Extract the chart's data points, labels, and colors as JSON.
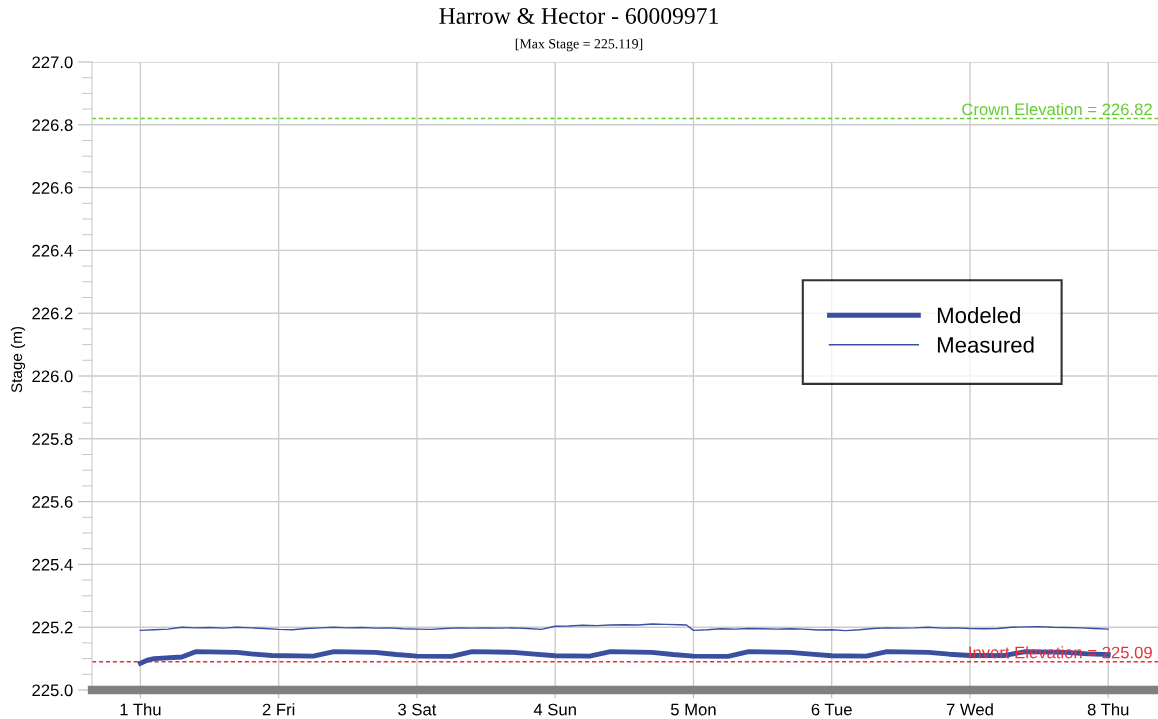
{
  "chart_data": {
    "type": "line",
    "title": "Harrow & Hector - 60009971",
    "subtitle": "[Max Stage = 225.119]",
    "ylabel": "Stage (m)",
    "xlim": [
      0.65,
      8.36
    ],
    "ylim": [
      225.0,
      227.0
    ],
    "xticks": [
      {
        "value": 1,
        "label": "1 Thu"
      },
      {
        "value": 2,
        "label": "2 Fri"
      },
      {
        "value": 3,
        "label": "3 Sat"
      },
      {
        "value": 4,
        "label": "4 Sun"
      },
      {
        "value": 5,
        "label": "5 Mon"
      },
      {
        "value": 6,
        "label": "6 Tue"
      },
      {
        "value": 7,
        "label": "7 Wed"
      },
      {
        "value": 8,
        "label": "8 Thu"
      }
    ],
    "yticks": [
      {
        "value": 225,
        "label": "225.0"
      },
      225.2,
      225.4,
      225.6,
      225.8,
      {
        "value": 226,
        "label": "226.0"
      },
      226.2,
      226.4,
      226.6,
      226.8,
      {
        "value": 227,
        "label": "227.0"
      }
    ],
    "grid": true,
    "legend": "right",
    "line_style": "solid",
    "marker": "none",
    "series": [
      {
        "name": "Modeled",
        "color": "#3a4fa0",
        "x": [
          1.0,
          1.05,
          1.1,
          1.3,
          1.4,
          1.7,
          1.8,
          1.95,
          2.25,
          2.4,
          2.7,
          2.85,
          3.0,
          3.25,
          3.4,
          3.7,
          3.85,
          4.0,
          4.25,
          4.4,
          4.7,
          4.85,
          5.0,
          5.25,
          5.4,
          5.7,
          5.85,
          6.0,
          6.25,
          6.4,
          6.7,
          6.85,
          7.0,
          7.25,
          7.4,
          7.7,
          7.85,
          8.0
        ],
        "values": [
          225.085,
          225.095,
          225.1,
          225.105,
          225.122,
          225.12,
          225.115,
          225.11,
          225.108,
          225.122,
          225.12,
          225.113,
          225.108,
          225.107,
          225.122,
          225.12,
          225.114,
          225.109,
          225.108,
          225.122,
          225.12,
          225.113,
          225.108,
          225.107,
          225.122,
          225.12,
          225.114,
          225.109,
          225.108,
          225.122,
          225.12,
          225.114,
          225.11,
          225.11,
          225.122,
          225.12,
          225.115,
          225.113
        ]
      },
      {
        "name": "Measured",
        "color": "#3a4fa0",
        "x": [
          1.0,
          1.1,
          1.2,
          1.3,
          1.4,
          1.5,
          1.6,
          1.7,
          1.8,
          1.9,
          2.0,
          2.1,
          2.2,
          2.3,
          2.4,
          2.5,
          2.6,
          2.7,
          2.8,
          2.9,
          3.0,
          3.1,
          3.2,
          3.3,
          3.4,
          3.5,
          3.6,
          3.7,
          3.8,
          3.9,
          4.0,
          4.1,
          4.2,
          4.3,
          4.4,
          4.5,
          4.6,
          4.7,
          4.8,
          4.9,
          4.95,
          5.0,
          5.1,
          5.2,
          5.3,
          5.4,
          5.5,
          5.6,
          5.7,
          5.8,
          5.9,
          6.0,
          6.1,
          6.2,
          6.3,
          6.4,
          6.5,
          6.6,
          6.7,
          6.8,
          6.9,
          7.0,
          7.1,
          7.2,
          7.3,
          7.4,
          7.5,
          7.6,
          7.7,
          7.8,
          7.9,
          8.0
        ],
        "values": [
          225.19,
          225.192,
          225.194,
          225.2,
          225.198,
          225.199,
          225.197,
          225.2,
          225.198,
          225.196,
          225.193,
          225.192,
          225.196,
          225.198,
          225.2,
          225.198,
          225.199,
          225.197,
          225.198,
          225.195,
          225.194,
          225.193,
          225.196,
          225.198,
          225.197,
          225.198,
          225.197,
          225.198,
          225.196,
          225.193,
          225.203,
          225.204,
          225.206,
          225.205,
          225.207,
          225.208,
          225.207,
          225.21,
          225.209,
          225.208,
          225.207,
          225.19,
          225.192,
          225.195,
          225.194,
          225.196,
          225.195,
          225.194,
          225.195,
          225.194,
          225.191,
          225.192,
          225.189,
          225.192,
          225.196,
          225.198,
          225.197,
          225.198,
          225.2,
          225.197,
          225.198,
          225.196,
          225.195,
          225.196,
          225.2,
          225.201,
          225.202,
          225.2,
          225.199,
          225.198,
          225.196,
          225.194
        ]
      }
    ],
    "ref_lines": [
      {
        "axis": "y",
        "value": 226.82,
        "label": "Crown Elevation = 226.82",
        "color": "#66cc33",
        "line_style": "dashed"
      },
      {
        "axis": "y",
        "value": 225.09,
        "label": "Invert Elevation = 225.09",
        "color": "#e8303a",
        "line_style": "dashed"
      }
    ]
  }
}
